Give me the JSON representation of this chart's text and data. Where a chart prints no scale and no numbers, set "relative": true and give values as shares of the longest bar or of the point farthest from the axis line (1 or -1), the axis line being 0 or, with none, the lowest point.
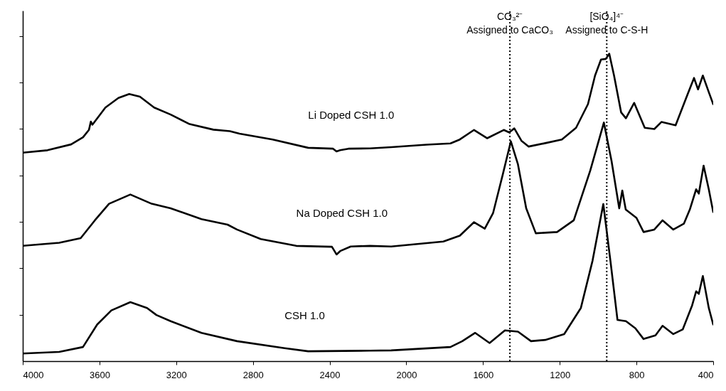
{
  "chart_data": {
    "type": "line",
    "relative": true,
    "tick_labels": "x",
    "xlim": [
      4000,
      400
    ],
    "xticks": [
      4000,
      3600,
      3200,
      2800,
      2400,
      2000,
      1600,
      1200,
      800,
      400
    ],
    "ref_lines": [
      {
        "axis": "x",
        "value": 1460,
        "label": "CO₃²⁻\nAssigned to CaCO₃",
        "line_style": "dotted",
        "color": "#000000"
      },
      {
        "axis": "x",
        "value": 955,
        "label": "[SiO₄]⁴⁻\nAssigned to C-S-H",
        "line_style": "dotted",
        "color": "#000000"
      }
    ],
    "series": [
      {
        "name": "Li Doped CSH 1.0",
        "color": "#000000",
        "x": [
          4000,
          3871,
          3748,
          3686,
          3655,
          3645,
          3637,
          3569,
          3501,
          3445,
          3389,
          3315,
          3229,
          3130,
          3006,
          2920,
          2870,
          2697,
          2512,
          2382,
          2364,
          2345,
          2302,
          2190,
          2079,
          1894,
          1770,
          1721,
          1647,
          1579,
          1492,
          1464,
          1437,
          1400,
          1362,
          1276,
          1189,
          1115,
          1053,
          1016,
          985,
          960,
          942,
          917,
          880,
          855,
          812,
          757,
          707,
          670,
          596,
          534,
          500,
          479,
          454,
          423,
          400
        ],
        "values": [
          0.678,
          0.686,
          0.705,
          0.728,
          0.752,
          0.779,
          0.769,
          0.825,
          0.856,
          0.869,
          0.86,
          0.825,
          0.802,
          0.771,
          0.753,
          0.748,
          0.74,
          0.721,
          0.694,
          0.691,
          0.682,
          0.686,
          0.691,
          0.692,
          0.696,
          0.704,
          0.708,
          0.721,
          0.752,
          0.725,
          0.752,
          0.744,
          0.757,
          0.717,
          0.698,
          0.709,
          0.721,
          0.759,
          0.836,
          0.929,
          0.981,
          0.983,
          1.0,
          0.929,
          0.809,
          0.79,
          0.84,
          0.759,
          0.755,
          0.778,
          0.767,
          0.867,
          0.921,
          0.884,
          0.929,
          0.875,
          0.836
        ]
      },
      {
        "name": "Na  Doped CSH 1.0",
        "color": "#000000",
        "x": [
          4000,
          3810,
          3698,
          3624,
          3550,
          3439,
          3328,
          3229,
          3068,
          2932,
          2883,
          2759,
          2574,
          2388,
          2364,
          2345,
          2290,
          2190,
          2079,
          1807,
          1721,
          1647,
          1591,
          1548,
          1498,
          1455,
          1418,
          1375,
          1325,
          1214,
          1127,
          1041,
          970,
          930,
          890,
          874,
          856,
          800,
          763,
          707,
          664,
          608,
          553,
          522,
          489,
          475,
          450,
          423,
          400
        ],
        "values": [
          0.375,
          0.385,
          0.4,
          0.458,
          0.512,
          0.542,
          0.512,
          0.497,
          0.462,
          0.444,
          0.428,
          0.397,
          0.375,
          0.372,
          0.347,
          0.358,
          0.373,
          0.375,
          0.373,
          0.389,
          0.408,
          0.452,
          0.431,
          0.481,
          0.605,
          0.715,
          0.64,
          0.497,
          0.416,
          0.42,
          0.458,
          0.62,
          0.776,
          0.651,
          0.497,
          0.555,
          0.493,
          0.466,
          0.42,
          0.428,
          0.458,
          0.428,
          0.447,
          0.493,
          0.559,
          0.545,
          0.636,
          0.559,
          0.485
        ]
      },
      {
        "name": "CSH 1.0",
        "color": "#000000",
        "x": [
          4000,
          3810,
          3686,
          3612,
          3538,
          3439,
          3352,
          3303,
          3229,
          3068,
          2883,
          2635,
          2512,
          2190,
          2079,
          1770,
          1708,
          1641,
          1566,
          1486,
          1418,
          1350,
          1276,
          1177,
          1090,
          1029,
          973,
          936,
          899,
          855,
          806,
          763,
          701,
          664,
          608,
          559,
          510,
          489,
          475,
          454,
          423,
          400
        ],
        "values": [
          0.025,
          0.03,
          0.046,
          0.119,
          0.165,
          0.192,
          0.173,
          0.15,
          0.13,
          0.092,
          0.065,
          0.042,
          0.032,
          0.034,
          0.035,
          0.046,
          0.065,
          0.092,
          0.059,
          0.1,
          0.096,
          0.065,
          0.069,
          0.088,
          0.173,
          0.327,
          0.511,
          0.327,
          0.134,
          0.13,
          0.107,
          0.072,
          0.084,
          0.115,
          0.088,
          0.103,
          0.181,
          0.227,
          0.219,
          0.277,
          0.173,
          0.119
        ]
      }
    ]
  }
}
